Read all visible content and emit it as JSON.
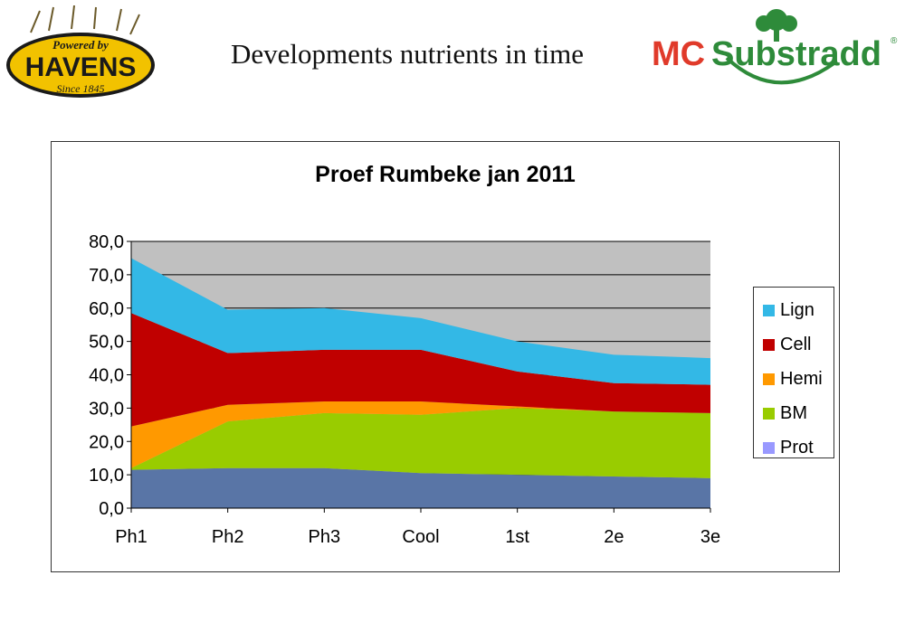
{
  "slide": {
    "title": "Developments nutrients in time",
    "logo_left": {
      "line1": "Powered by",
      "line2": "HAVENS",
      "line3": "Since 1845"
    },
    "logo_right": {
      "text_mc": "MC",
      "text_sub": "Substradd",
      "mark": "®"
    }
  },
  "colors": {
    "plot_bg": "#c0c0c0",
    "Lign": "#33b8e6",
    "Cell": "#c00000",
    "Hemi": "#ff9900",
    "BM": "#99cc00",
    "Prot": "#5975a6",
    "legend_prot": "#9999ff"
  },
  "chart_data": {
    "type": "area",
    "stacked": true,
    "title": "Proef Rumbeke jan 2011",
    "xlabel": "",
    "ylabel": "",
    "categories": [
      "Ph1",
      "Ph2",
      "Ph3",
      "Cool",
      "1st",
      "2e",
      "3e"
    ],
    "ylim": [
      0,
      80
    ],
    "yticks": [
      "0,0",
      "10,0",
      "20,0",
      "30,0",
      "40,0",
      "50,0",
      "60,0",
      "70,0",
      "80,0"
    ],
    "grid": true,
    "legend_position": "right",
    "legend": [
      "Lign",
      "Cell",
      "Hemi",
      "BM",
      "Prot"
    ],
    "series": [
      {
        "name": "Prot",
        "values": [
          11.5,
          12.0,
          12.0,
          10.5,
          10.0,
          9.5,
          9.0
        ]
      },
      {
        "name": "BM",
        "values": [
          0.5,
          14.0,
          16.5,
          17.5,
          20.0,
          19.5,
          19.5
        ]
      },
      {
        "name": "Hemi",
        "values": [
          12.5,
          5.0,
          3.5,
          4.0,
          0.5,
          0.0,
          0.0
        ]
      },
      {
        "name": "Cell",
        "values": [
          34.0,
          15.5,
          15.5,
          15.5,
          10.5,
          8.5,
          8.5
        ]
      },
      {
        "name": "Lign",
        "values": [
          16.5,
          13.0,
          12.5,
          9.5,
          9.0,
          8.5,
          8.0
        ]
      }
    ]
  }
}
